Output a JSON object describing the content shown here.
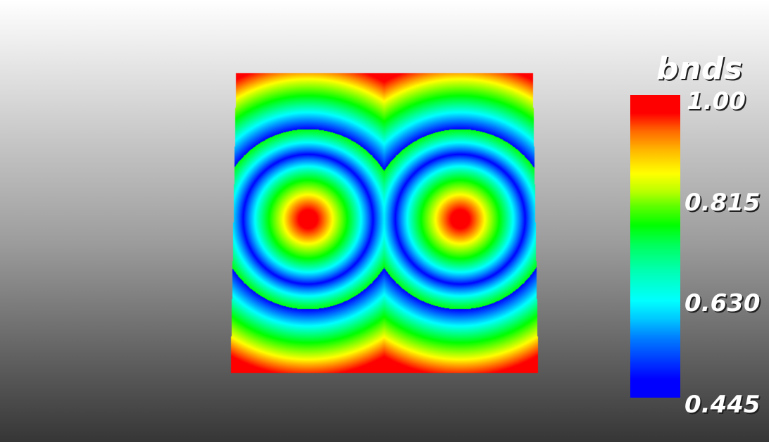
{
  "scalar_bar": {
    "title": "bnds",
    "ticks": [
      "1.00",
      "0.815",
      "0.630",
      "0.445"
    ],
    "range": [
      0.445,
      1.0
    ]
  },
  "colors": {
    "high": "#ff0000",
    "mid_high": "#ffff00",
    "mid": "#00ff00",
    "mid_low": "#00ffff",
    "low": "#0000ff"
  }
}
